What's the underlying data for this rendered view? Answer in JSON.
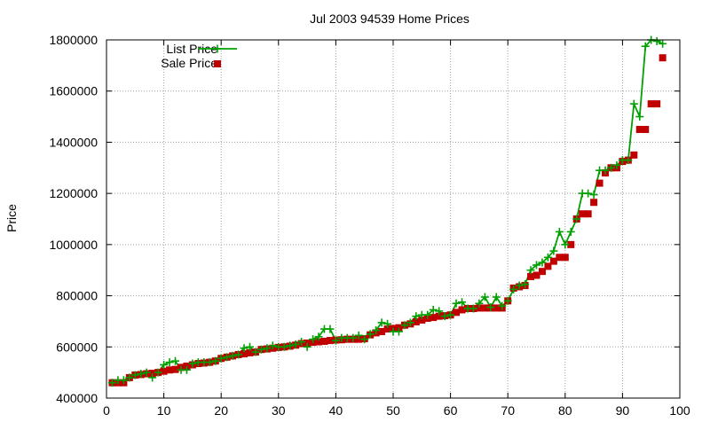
{
  "chart_data": {
    "type": "line",
    "title": "Jul 2003 94539 Home Prices",
    "xlabel": "",
    "ylabel": "Price",
    "xlim": [
      0,
      100
    ],
    "ylim": [
      400000,
      1800000
    ],
    "x_ticks": [
      0,
      10,
      20,
      30,
      40,
      50,
      60,
      70,
      80,
      90,
      100
    ],
    "y_ticks": [
      400000,
      600000,
      800000,
      1000000,
      1200000,
      1400000,
      1600000,
      1800000
    ],
    "x_tick_labels": [
      "0",
      "10",
      "20",
      "30",
      "40",
      "50",
      "60",
      "70",
      "80",
      "90",
      "100"
    ],
    "y_tick_labels": [
      "400000",
      "600000",
      "800000",
      "1000000",
      "1200000",
      "1400000",
      "1600000",
      "1800000"
    ],
    "grid": true,
    "legend_position": "top-left",
    "series": [
      {
        "name": "List Price",
        "style": "line+plus",
        "color": "#00a000",
        "x": [
          1,
          2,
          3,
          4,
          5,
          6,
          7,
          8,
          9,
          10,
          11,
          12,
          13,
          14,
          15,
          16,
          17,
          18,
          19,
          20,
          21,
          22,
          23,
          24,
          25,
          26,
          27,
          28,
          29,
          30,
          31,
          32,
          33,
          34,
          35,
          36,
          37,
          38,
          39,
          40,
          41,
          42,
          43,
          44,
          45,
          46,
          47,
          48,
          49,
          50,
          51,
          52,
          53,
          54,
          55,
          56,
          57,
          58,
          59,
          60,
          61,
          62,
          63,
          64,
          65,
          66,
          67,
          68,
          69,
          70,
          71,
          72,
          73,
          74,
          75,
          76,
          77,
          78,
          79,
          80,
          81,
          82,
          83,
          84,
          85,
          86,
          87,
          88,
          89,
          90,
          91,
          92,
          93,
          94,
          95,
          96,
          97
        ],
        "y": [
          460000,
          470000,
          470000,
          480000,
          490000,
          495000,
          500000,
          480000,
          500000,
          530000,
          540000,
          545000,
          510000,
          510000,
          535000,
          540000,
          540000,
          540000,
          545000,
          555000,
          560000,
          565000,
          570000,
          595000,
          600000,
          580000,
          590000,
          595000,
          605000,
          600000,
          600000,
          605000,
          610000,
          620000,
          600000,
          630000,
          640000,
          670000,
          670000,
          625000,
          635000,
          635000,
          635000,
          645000,
          630000,
          650000,
          665000,
          695000,
          690000,
          660000,
          660000,
          685000,
          695000,
          720000,
          725000,
          725000,
          745000,
          740000,
          720000,
          725000,
          770000,
          775000,
          750000,
          750000,
          770000,
          795000,
          755000,
          795000,
          760000,
          780000,
          825000,
          840000,
          845000,
          900000,
          920000,
          930000,
          950000,
          975000,
          1050000,
          1000000,
          1050000,
          1100000,
          1200000,
          1200000,
          1195000,
          1290000,
          1290000,
          1300000,
          1310000,
          1330000,
          1330000,
          1550000,
          1500000,
          1775000,
          1800000,
          1795000,
          1785000
        ]
      },
      {
        "name": "Sale Price",
        "style": "points",
        "color": "#c00000",
        "x": [
          1,
          2,
          3,
          4,
          5,
          6,
          7,
          8,
          9,
          10,
          11,
          12,
          13,
          14,
          15,
          16,
          17,
          18,
          19,
          20,
          21,
          22,
          23,
          24,
          25,
          26,
          27,
          28,
          29,
          30,
          31,
          32,
          33,
          34,
          35,
          36,
          37,
          38,
          39,
          40,
          41,
          42,
          43,
          44,
          45,
          46,
          47,
          48,
          49,
          50,
          51,
          52,
          53,
          54,
          55,
          56,
          57,
          58,
          59,
          60,
          61,
          62,
          63,
          64,
          65,
          66,
          67,
          68,
          69,
          70,
          71,
          72,
          73,
          74,
          75,
          76,
          77,
          78,
          79,
          80,
          81,
          82,
          83,
          84,
          85,
          86,
          87,
          88,
          89,
          90,
          91,
          92,
          93,
          94,
          95,
          96,
          97
        ],
        "y": [
          460000,
          460000,
          460000,
          480000,
          490000,
          492000,
          495000,
          497000,
          500000,
          505000,
          510000,
          512000,
          520000,
          525000,
          530000,
          535000,
          537000,
          540000,
          545000,
          555000,
          560000,
          565000,
          570000,
          573000,
          577000,
          580000,
          590000,
          592000,
          595000,
          598000,
          600000,
          603000,
          607000,
          613000,
          615000,
          618000,
          620000,
          622000,
          625000,
          627000,
          628000,
          630000,
          630000,
          630000,
          632000,
          647000,
          655000,
          660000,
          670000,
          672000,
          675000,
          685000,
          690000,
          698000,
          705000,
          712000,
          715000,
          720000,
          722000,
          725000,
          735000,
          745000,
          750000,
          750000,
          752000,
          752000,
          752000,
          752000,
          752000,
          780000,
          830000,
          835000,
          840000,
          875000,
          880000,
          895000,
          915000,
          935000,
          950000,
          950000,
          1000000,
          1100000,
          1120000,
          1120000,
          1165000,
          1240000,
          1280000,
          1300000,
          1300000,
          1325000,
          1330000,
          1350000,
          1450000,
          1450000,
          1550000,
          1550000,
          1730000
        ]
      }
    ]
  }
}
